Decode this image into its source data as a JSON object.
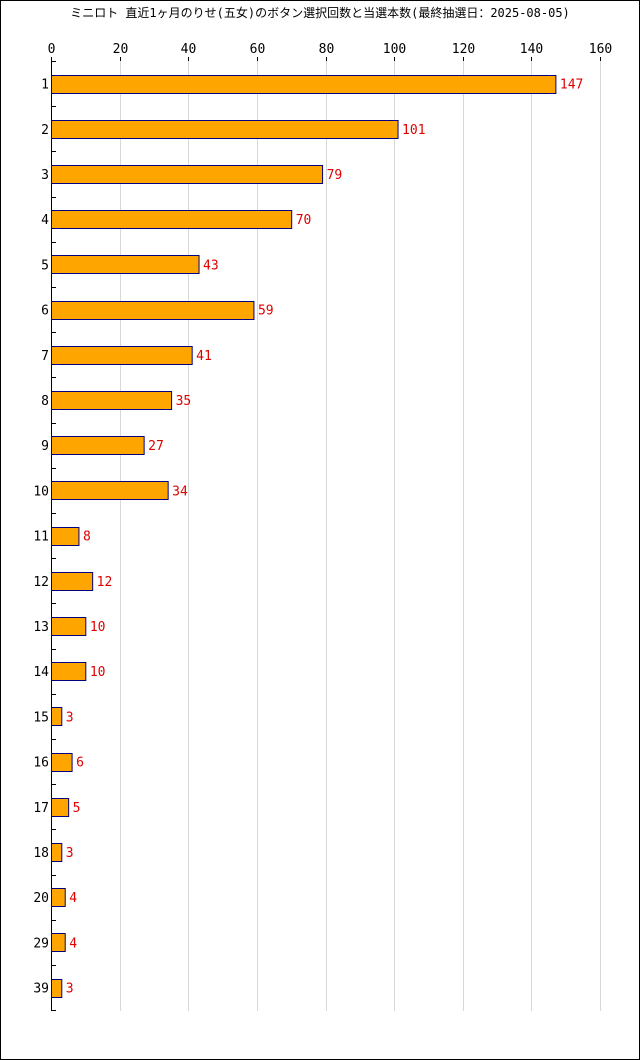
{
  "chart_data": {
    "type": "bar",
    "orientation": "horizontal",
    "title": "ミニロト 直近1ヶ月のりせ(五女)のボタン選択回数と当選本数(最終抽選日：2025-08-05)",
    "xlabel": "",
    "ylabel": "",
    "xlim": [
      0,
      160
    ],
    "x_ticks": [
      0,
      20,
      40,
      60,
      80,
      100,
      120,
      140,
      160
    ],
    "grid": true,
    "categories": [
      "1",
      "2",
      "3",
      "4",
      "5",
      "6",
      "7",
      "8",
      "9",
      "10",
      "11",
      "12",
      "13",
      "14",
      "15",
      "16",
      "17",
      "18",
      "20",
      "29",
      "39"
    ],
    "values": [
      147,
      101,
      79,
      70,
      43,
      59,
      41,
      35,
      27,
      34,
      8,
      12,
      10,
      10,
      3,
      6,
      5,
      3,
      4,
      4,
      3
    ],
    "bar_color": "#ffa500",
    "bar_border_color": "#000080",
    "value_label_color": "#e00000",
    "grid_color": "#d8d8d8"
  }
}
